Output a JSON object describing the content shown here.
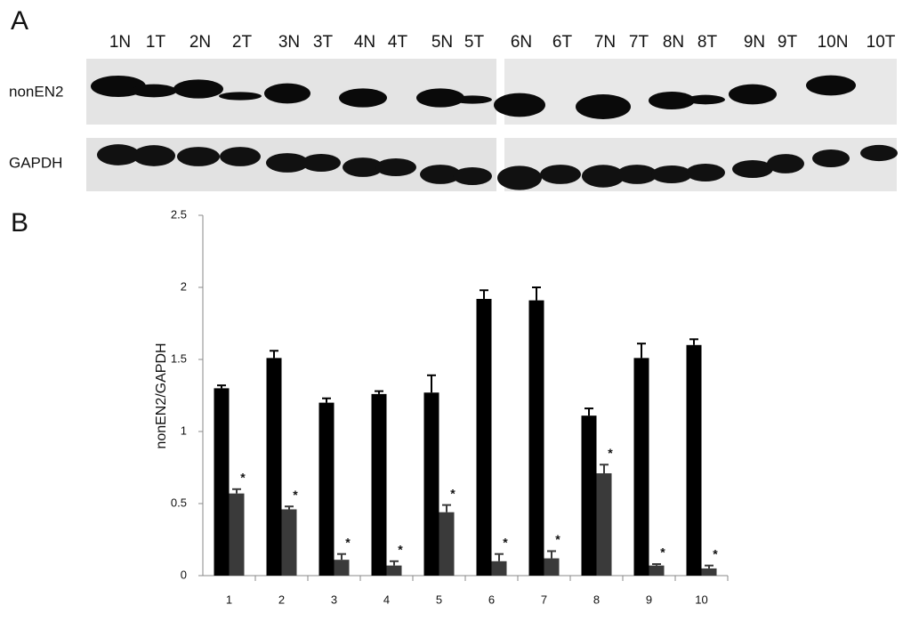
{
  "panel_labels": [
    "A",
    "B"
  ],
  "blot": {
    "lanes": [
      "1N",
      "1T",
      "2N",
      "2T",
      "3N",
      "3T",
      "4N",
      "4T",
      "5N",
      "5T",
      "6N",
      "6T",
      "7N",
      "7T",
      "8N",
      "8T",
      "9N",
      "9T",
      "10N",
      "10T"
    ],
    "rows": [
      "nonEN2",
      "GAPDH"
    ]
  },
  "chart_data": {
    "type": "bar",
    "y_label": "nonEN2/GAPDH",
    "categories": [
      "1",
      "2",
      "3",
      "4",
      "5",
      "6",
      "7",
      "8",
      "9",
      "10"
    ],
    "series": [
      {
        "color": "#000000",
        "values": [
          1.3,
          1.51,
          1.2,
          1.26,
          1.27,
          1.92,
          1.91,
          1.11,
          1.51,
          1.6
        ],
        "errors": [
          0.02,
          0.05,
          0.03,
          0.02,
          0.12,
          0.06,
          0.09,
          0.05,
          0.1,
          0.04
        ]
      },
      {
        "color": "#3a3a3a",
        "values": [
          0.57,
          0.46,
          0.11,
          0.07,
          0.44,
          0.1,
          0.12,
          0.71,
          0.07,
          0.05
        ],
        "errors": [
          0.03,
          0.02,
          0.04,
          0.03,
          0.05,
          0.05,
          0.05,
          0.06,
          0.01,
          0.02
        ],
        "annotations": [
          "*",
          "*",
          "*",
          "*",
          "*",
          "*",
          "*",
          "*",
          "*",
          "*"
        ]
      }
    ],
    "ylim": [
      0,
      2.5
    ],
    "yticks": [
      0,
      0.5,
      1,
      1.5,
      2,
      2.5
    ]
  }
}
